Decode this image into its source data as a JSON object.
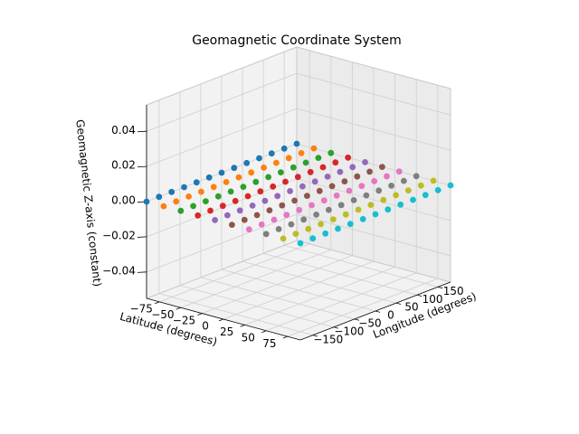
{
  "chart_data": {
    "type": "scatter",
    "projection": "3d",
    "title": "Geomagnetic Coordinate System",
    "xlabel": "Longitude (degrees)",
    "ylabel": "Latitude (degrees)",
    "zlabel": "Geomagnetic Z-axis (constant)",
    "x_ticks": [
      "−150",
      "−100",
      "−50",
      "0",
      "50",
      "100",
      "150"
    ],
    "y_ticks": [
      "75",
      "50",
      "25",
      "0",
      "−25",
      "−50",
      "−75"
    ],
    "z_ticks": [
      "−0.04",
      "−0.02",
      "0.00",
      "0.02",
      "0.04"
    ],
    "xlim": [
      -180,
      180
    ],
    "ylim": [
      -90,
      90
    ],
    "zlim": [
      -0.055,
      0.055
    ],
    "grid": true,
    "legend": "none",
    "colors": [
      "#1f77b4",
      "#ff7f0e",
      "#2ca02c",
      "#d62728",
      "#9467bd",
      "#8c564b",
      "#e377c2",
      "#7f7f7f",
      "#bcbd22",
      "#17becf"
    ],
    "x": [
      -180,
      -150,
      -120,
      -90,
      -60,
      -30,
      0,
      30,
      60,
      90,
      120,
      150,
      180
    ],
    "series": [
      {
        "lat": -90,
        "z": 0
      },
      {
        "lat": -70,
        "z": 0
      },
      {
        "lat": -50,
        "z": 0
      },
      {
        "lat": -30,
        "z": 0
      },
      {
        "lat": -10,
        "z": 0
      },
      {
        "lat": 10,
        "z": 0
      },
      {
        "lat": 30,
        "z": 0
      },
      {
        "lat": 50,
        "z": 0
      },
      {
        "lat": 70,
        "z": 0
      },
      {
        "lat": 90,
        "z": 0
      }
    ]
  }
}
